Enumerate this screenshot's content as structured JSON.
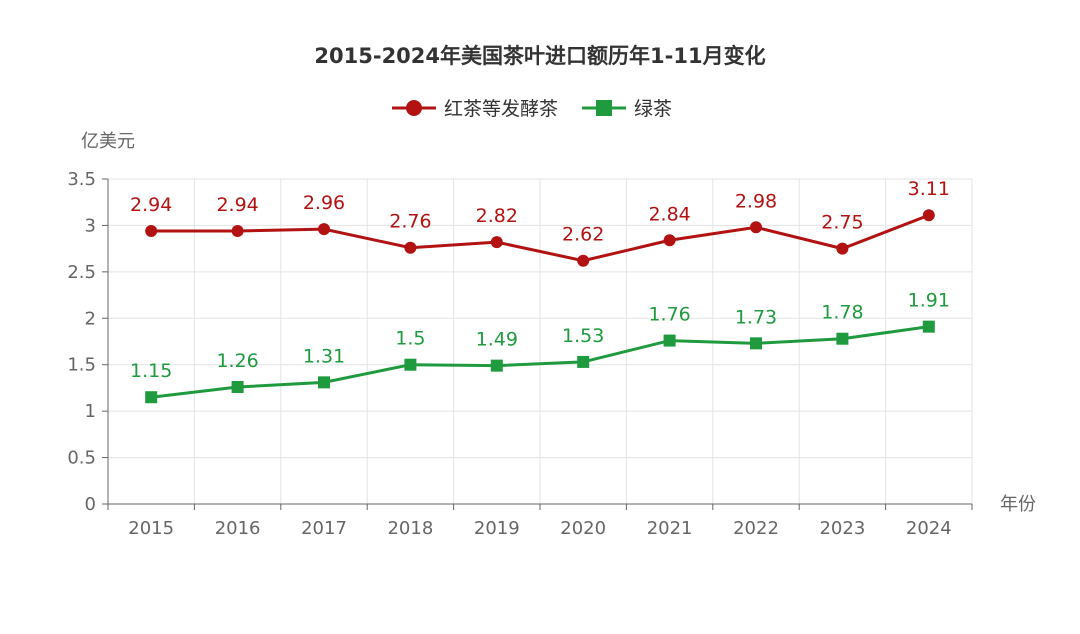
{
  "chart_data": {
    "type": "line",
    "title": "2015-2024年美国茶叶进口额历年1-11月变化",
    "ylabel": "亿美元",
    "xlabel": "年份",
    "ylim": [
      0,
      3.5
    ],
    "yticks": [
      0,
      0.5,
      1,
      1.5,
      2,
      2.5,
      3,
      3.5
    ],
    "ytick_labels": [
      "0",
      "0.5",
      "1",
      "1.5",
      "2",
      "2.5",
      "3",
      "3.5"
    ],
    "grid": true,
    "legend_position": "top-center",
    "categories": [
      "2015",
      "2016",
      "2017",
      "2018",
      "2019",
      "2020",
      "2021",
      "2022",
      "2023",
      "2024"
    ],
    "series": [
      {
        "name": "红茶等发酵茶",
        "color": "#b31212",
        "marker": "circle",
        "values": [
          2.94,
          2.94,
          2.96,
          2.76,
          2.82,
          2.62,
          2.84,
          2.98,
          2.75,
          3.11
        ],
        "labels": [
          "2.94",
          "2.94",
          "2.96",
          "2.76",
          "2.82",
          "2.62",
          "2.84",
          "2.98",
          "2.75",
          "3.11"
        ]
      },
      {
        "name": "绿茶",
        "color": "#1f9a3e",
        "marker": "square",
        "values": [
          1.15,
          1.26,
          1.31,
          1.5,
          1.49,
          1.53,
          1.76,
          1.73,
          1.78,
          1.91
        ],
        "labels": [
          "1.15",
          "1.26",
          "1.31",
          "1.5",
          "1.49",
          "1.53",
          "1.76",
          "1.73",
          "1.78",
          "1.91"
        ]
      }
    ]
  }
}
